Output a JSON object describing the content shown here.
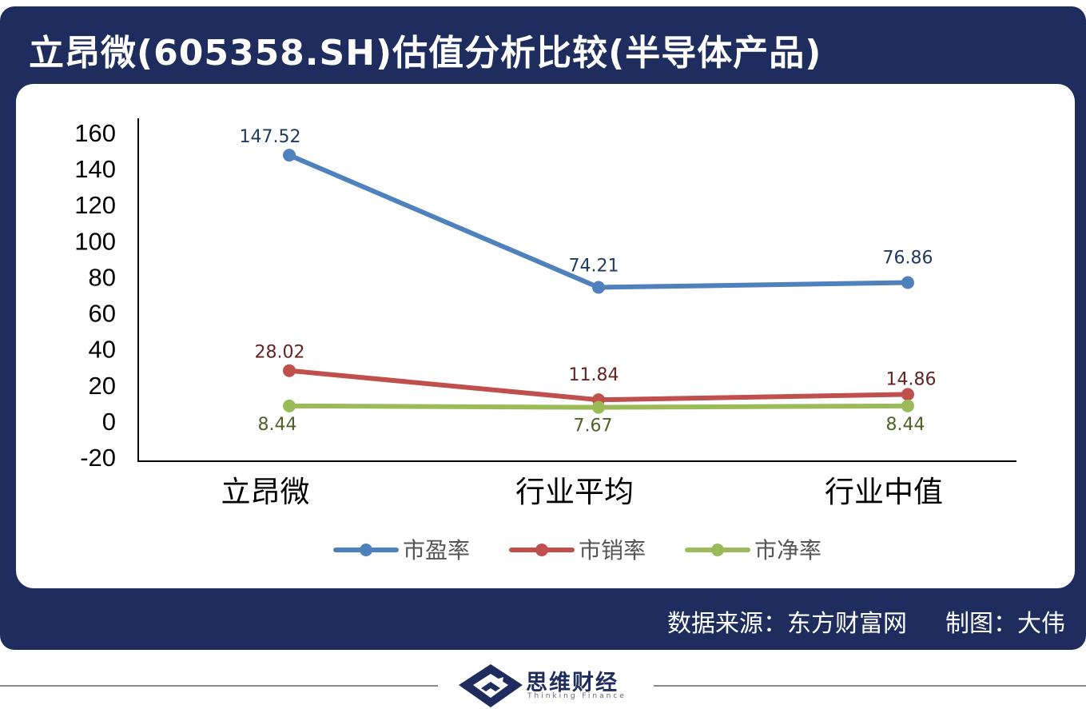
{
  "header": {
    "title": "立昂微(605358.SH)估值分析比较(半导体产品)"
  },
  "footer": {
    "source": "数据来源：东方财富网",
    "author": "制图：大伟",
    "brand_name": "思维财经",
    "brand_sub": "Thinking Finance"
  },
  "colors": {
    "frame": "#1e2d5e",
    "pe": "#4f81bd",
    "ps": "#c0504d",
    "pb": "#9bbb59",
    "pe_label": "#1f3a5f",
    "ps_label": "#632523",
    "pb_label": "#4f6228"
  },
  "chart_data": {
    "type": "line",
    "categories": [
      "立昂微",
      "行业平均",
      "行业中值"
    ],
    "series": [
      {
        "name": "市盈率",
        "values": [
          147.52,
          74.21,
          76.86
        ],
        "labels": [
          "147.52",
          "74.21",
          "76.86"
        ]
      },
      {
        "name": "市销率",
        "values": [
          28.02,
          11.84,
          14.86
        ],
        "labels": [
          "28.02",
          "11.84",
          "14.86"
        ]
      },
      {
        "name": "市净率",
        "values": [
          8.44,
          7.67,
          8.44
        ],
        "labels": [
          "8.44",
          "7.67",
          "8.44"
        ]
      }
    ],
    "ylim": [
      -20,
      160
    ],
    "yticks": [
      "160",
      "140",
      "120",
      "100",
      "80",
      "60",
      "40",
      "20",
      "0",
      "-20"
    ],
    "grid": false,
    "legend": "bottom"
  }
}
